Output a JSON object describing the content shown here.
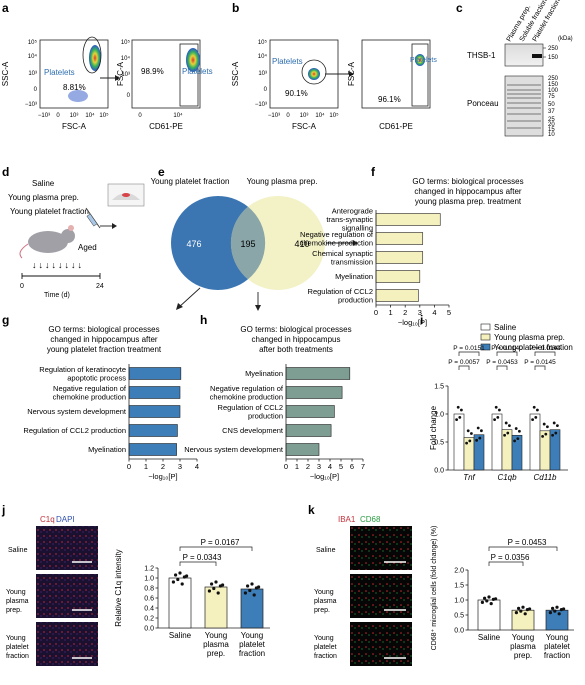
{
  "panels": {
    "a": {
      "letter": "a",
      "plot1": {
        "ylabel": "SSC-A",
        "xlabel": "FSC-A",
        "yticks": [
          "10⁵",
          "10⁴",
          "10³",
          "0",
          "−10³"
        ],
        "xticks": [
          "−10³",
          "0",
          "10³",
          "10⁴",
          "10⁵"
        ],
        "gate_label": "Platelets",
        "gate_pct": "8.81%"
      },
      "plot2": {
        "ylabel": "FSC-A",
        "xlabel": "CD61-PE",
        "yticks": [
          "10⁵",
          "10⁴",
          "10³",
          "0"
        ],
        "xticks": [
          "0",
          "10⁴"
        ],
        "gate_label": "Platelets",
        "gate_pct": "98.9%"
      }
    },
    "b": {
      "letter": "b",
      "plot1": {
        "ylabel": "SSC-A",
        "xlabel": "FSC-A",
        "yticks": [
          "10⁵",
          "10⁴",
          "10³",
          "0",
          "−10³"
        ],
        "xticks": [
          "−10³",
          "0",
          "10³",
          "10⁴",
          "10⁵"
        ],
        "gate_label": "Platelets",
        "gate_pct": "90.1%"
      },
      "plot2": {
        "ylabel": "FSC-A",
        "xlabel": "CD61-PE",
        "gate_label": "Platelets",
        "gate_pct": "96.1%"
      }
    },
    "c": {
      "letter": "c",
      "lanes": [
        "Plasma prep.",
        "Soluble fraction",
        "Platelet fraction"
      ],
      "kda": "(kDa)",
      "blot1_label": "THSB-1",
      "blot1_markers": [
        "250",
        "150"
      ],
      "blot2_label": "Ponceau",
      "blot2_markers": [
        "250",
        "150",
        "100",
        "75",
        "50",
        "37",
        "25",
        "20",
        "15",
        "10"
      ]
    },
    "d": {
      "letter": "d",
      "groups": [
        "Saline",
        "Young plasma prep.",
        "Young platelet fraction"
      ],
      "aged": "Aged",
      "time_axis": [
        "0",
        "24"
      ],
      "time_label": "Time (d)"
    },
    "e": {
      "letter": "e",
      "set1": "Young platelet fraction",
      "set2": "Young plasma prep.",
      "only1": "476",
      "both": "195",
      "only2": "410"
    },
    "f": {
      "letter": "f",
      "title": "GO terms: biological processes changed in hippocampus after young plasma prep. treatment",
      "xlabel": "−log₁₀[P]",
      "color": "#f5f1bf"
    },
    "g": {
      "letter": "g",
      "title": "GO terms: biological processes changed in hippocampus after young platelet fraction treatment",
      "xlabel": "−log₁₀[P]",
      "color": "#3d7db8"
    },
    "h": {
      "letter": "h",
      "title": "GO terms: biological processes changed in hippocampus after both treatments",
      "xlabel": "−log₁₀[P]",
      "color": "#7f9e93"
    },
    "i": {
      "letter": "i",
      "ylabel": "Fold change",
      "legend": [
        "Saline",
        "Young plasma prep.",
        "Young platelet fraction"
      ],
      "pvals": [
        "P = 0.0151",
        "P = 0.0057",
        "P = 0.0140",
        "P = 0.0453",
        "P = 0.0144",
        "P = 0.0145"
      ]
    },
    "j": {
      "letter": "j",
      "stain1": "C1q",
      "stain2": "DAPI",
      "rows": [
        "Saline",
        "Young plasma prep.",
        "Young platelet fraction"
      ],
      "ylabel": "Relative C1q intensity",
      "pvals": [
        "P = 0.0167",
        "P = 0.0343"
      ]
    },
    "k": {
      "letter": "k",
      "stain1": "IBA1",
      "stain2": "CD68",
      "rows": [
        "Saline",
        "Young plasma prep.",
        "Young platelet fraction"
      ],
      "ylabel": "CD68⁺ microglial cells (fold change) (%)",
      "pvals": [
        "P = 0.0453",
        "P = 0.0356"
      ]
    }
  },
  "chart_data": [
    {
      "type": "bar",
      "id": "f",
      "categories": [
        "Anterograde trans-synaptic signalling",
        "Negative regulation of chemokine production",
        "Chemical synaptic transmission",
        "Myelination",
        "Regulation of CCL2 production"
      ],
      "values": [
        4.4,
        3.2,
        3.2,
        3.0,
        2.9
      ],
      "xlim": [
        0,
        5
      ],
      "xticks": [
        0,
        1,
        2,
        3,
        4,
        5
      ]
    },
    {
      "type": "bar",
      "id": "g",
      "categories": [
        "Regulation of keratinocyte apoptotic process",
        "Negative regulation of chemokine production",
        "Nervous system development",
        "Regulation of CCL2 production",
        "Myelination"
      ],
      "values": [
        3.05,
        3.0,
        3.0,
        2.85,
        2.8
      ],
      "xlim": [
        0,
        4
      ],
      "xticks": [
        0,
        1,
        2,
        3,
        4
      ]
    },
    {
      "type": "bar",
      "id": "h",
      "categories": [
        "Myelination",
        "Negative regulation of chemokine production",
        "Regulation of CCL2 production",
        "CNS development",
        "Nervous system development"
      ],
      "values": [
        5.8,
        5.1,
        4.4,
        4.1,
        3.0
      ],
      "xlim": [
        0,
        7
      ],
      "xticks": [
        0,
        1,
        2,
        3,
        4,
        5,
        6,
        7
      ]
    },
    {
      "type": "bar",
      "id": "i",
      "categories": [
        "Tnf",
        "C1qb",
        "Cd11b"
      ],
      "series": [
        {
          "name": "Saline",
          "values": [
            1.0,
            1.0,
            1.0
          ]
        },
        {
          "name": "Young plasma prep.",
          "values": [
            0.58,
            0.72,
            0.7
          ]
        },
        {
          "name": "Young platelet fraction",
          "values": [
            0.63,
            0.62,
            0.72
          ]
        }
      ],
      "ylim": [
        0,
        1.5
      ],
      "yticks": [
        0,
        0.5,
        1.0,
        1.5
      ]
    },
    {
      "type": "bar",
      "id": "j",
      "categories": [
        "Saline",
        "Young plasma prep.",
        "Young platelet fraction"
      ],
      "values": [
        1.0,
        0.82,
        0.78
      ],
      "ylim": [
        0,
        1.2
      ],
      "yticks": [
        0,
        0.2,
        0.4,
        0.6,
        0.8,
        1.0,
        1.2
      ]
    },
    {
      "type": "bar",
      "id": "k",
      "categories": [
        "Saline",
        "Young plasma prep.",
        "Young platelet fraction"
      ],
      "values": [
        1.0,
        0.66,
        0.66
      ],
      "ylim": [
        0,
        2.0
      ],
      "yticks": [
        0,
        0.5,
        1.0,
        1.5,
        2.0
      ]
    }
  ]
}
